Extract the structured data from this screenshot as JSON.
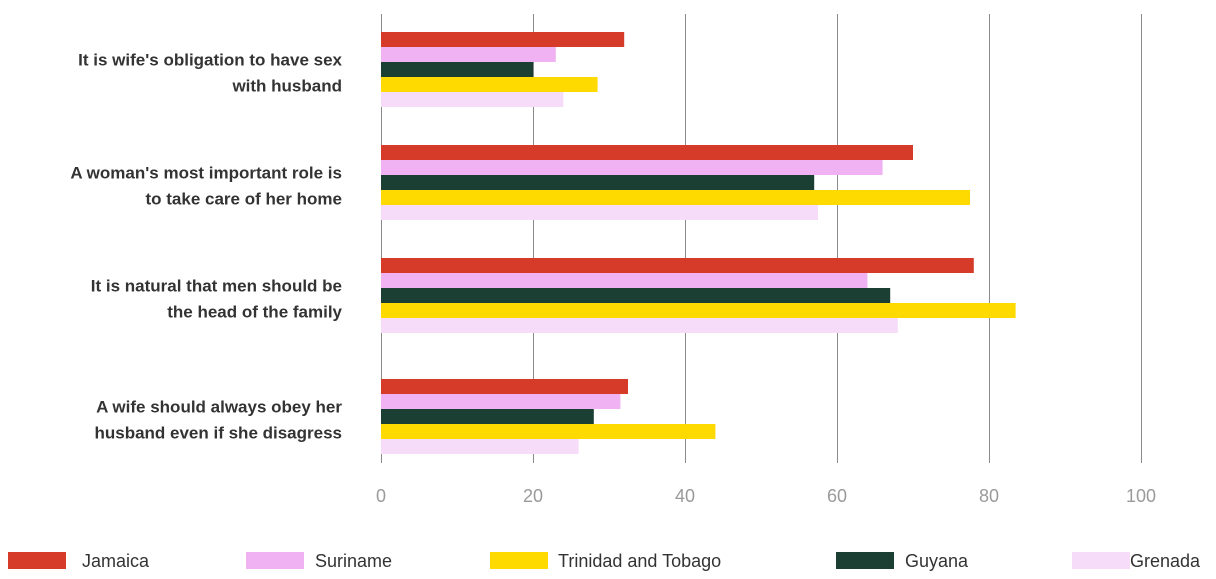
{
  "chart_data": {
    "type": "bar",
    "orientation": "horizontal",
    "title": "",
    "xlabel": "",
    "ylabel": "",
    "xlim": [
      0,
      100
    ],
    "x_ticks": [
      0,
      20,
      40,
      60,
      80,
      100
    ],
    "grid": true,
    "legend_position": "bottom",
    "categories": [
      "It is wife's obligation to have sex with husband",
      "A woman's most important role is to take care of her home",
      "It is natural that men should be the head of the family",
      "A wife should always obey her husband even if she disagress"
    ],
    "category_label_lines": [
      [
        "It is wife's obligation to have sex",
        "with husband"
      ],
      [
        "A woman's most important role is",
        "to take care of her home"
      ],
      [
        "It is natural that men should be",
        "the head of the family"
      ],
      [
        "A wife should always obey her",
        "husband even if she disagress"
      ]
    ],
    "series": [
      {
        "name": "Jamaica",
        "color": "#d63b2a",
        "values": [
          32,
          70,
          78,
          32.5
        ]
      },
      {
        "name": "Suriname",
        "color": "#f0b2f2",
        "values": [
          23,
          66,
          64,
          31.5
        ]
      },
      {
        "name": "Guyana",
        "color": "#1b4033",
        "values": [
          20,
          57,
          67,
          28
        ]
      },
      {
        "name": "Trinidad and Tobago",
        "color": "#ffda00",
        "values": [
          28.5,
          77.5,
          83.5,
          44
        ]
      },
      {
        "name": "Grenada",
        "color": "#f7dcf9",
        "values": [
          24,
          57.5,
          68,
          26
        ]
      }
    ],
    "legend_order": [
      "Jamaica",
      "Suriname",
      "Trinidad and Tobago",
      "Guyana",
      "Grenada"
    ]
  }
}
